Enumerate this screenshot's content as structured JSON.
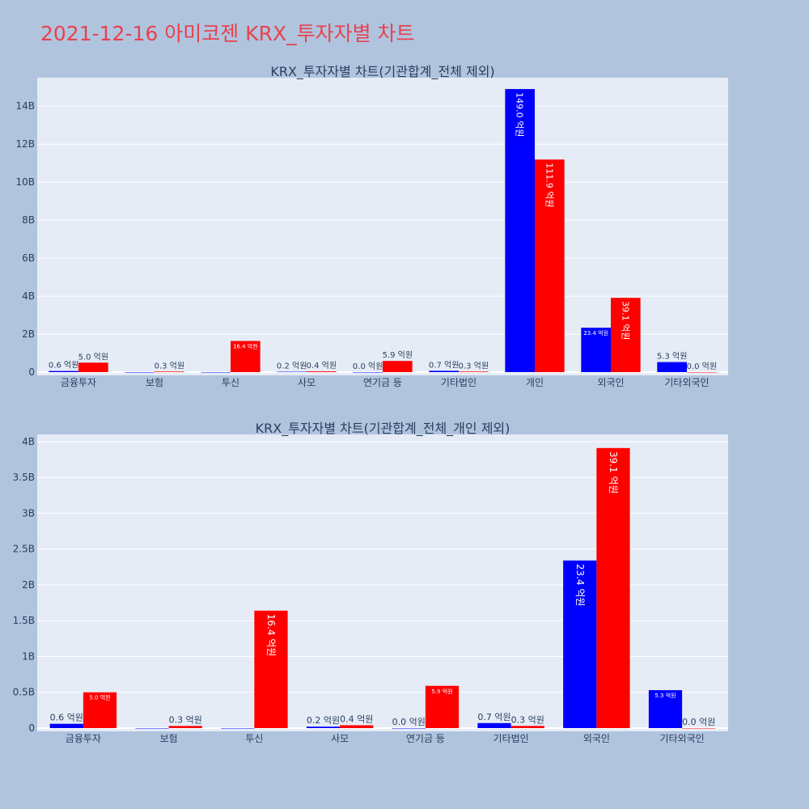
{
  "title": "2021-12-16 아미코젠 KRX_투자자별 차트",
  "colors": {
    "background": "#b0c4de",
    "plot_bg": "#e5ecf6",
    "buy": "#0000ff",
    "sell": "#ff0000",
    "title": "#e8424f",
    "text": "#2a3f5f"
  },
  "chart_data": [
    {
      "type": "bar",
      "title": "KRX_투자자별 차트(기관합계_전체 제외)",
      "categories": [
        "금융투자",
        "보험",
        "투신",
        "사모",
        "연기금 등",
        "기타법인",
        "개인",
        "외국인",
        "기타외국인"
      ],
      "ylim": [
        0,
        15.5
      ],
      "y_ticks": [
        0,
        2,
        4,
        6,
        8,
        10,
        12,
        14
      ],
      "y_tick_labels": [
        "0",
        "2B",
        "4B",
        "6B",
        "8B",
        "10B",
        "12B",
        "14B"
      ],
      "grid": true,
      "series": [
        {
          "color": "#0000ff",
          "values": [
            0.06,
            0.0,
            0.0,
            0.02,
            0.0,
            0.07,
            14.9,
            2.34,
            0.53
          ],
          "labels": [
            "0.6 억원",
            "",
            "",
            "0.2 억원",
            "0.0 억원",
            "0.7 억원",
            "149.0 억원",
            "23.4 억원",
            "5.3 억원"
          ]
        },
        {
          "color": "#ff0000",
          "values": [
            0.5,
            0.03,
            1.64,
            0.04,
            0.59,
            0.03,
            11.19,
            3.91,
            0.0
          ],
          "labels": [
            "5.0 억원",
            "0.3 억원",
            "16.4 억원",
            "0.4 억원",
            "5.9 억원",
            "0.3 억원",
            "111.9 억원",
            "39.1 억원",
            "0.0 억원"
          ]
        }
      ]
    },
    {
      "type": "bar",
      "title": "KRX_투자자별 차트(기관합계_전체_개인 제외)",
      "categories": [
        "금융투자",
        "보험",
        "투신",
        "사모",
        "연기금 등",
        "기타법인",
        "외국인",
        "기타외국인"
      ],
      "ylim": [
        0,
        4.1
      ],
      "y_ticks": [
        0,
        0.5,
        1,
        1.5,
        2,
        2.5,
        3,
        3.5,
        4
      ],
      "y_tick_labels": [
        "0",
        "0.5B",
        "1B",
        "1.5B",
        "2B",
        "2.5B",
        "3B",
        "3.5B",
        "4B"
      ],
      "grid": true,
      "series": [
        {
          "color": "#0000ff",
          "values": [
            0.06,
            0.0,
            0.0,
            0.02,
            0.0,
            0.07,
            2.34,
            0.53
          ],
          "labels": [
            "0.6 억원",
            "",
            "",
            "0.2 억원",
            "0.0 억원",
            "0.7 억원",
            "23.4 억원",
            "5.3 억원"
          ]
        },
        {
          "color": "#ff0000",
          "values": [
            0.5,
            0.03,
            1.64,
            0.04,
            0.59,
            0.03,
            3.91,
            0.0
          ],
          "labels": [
            "5.0 억원",
            "0.3 억원",
            "16.4 억원",
            "0.4 억원",
            "5.9 억원",
            "0.3 억원",
            "39.1 억원",
            "0.0 억원"
          ]
        }
      ]
    }
  ]
}
